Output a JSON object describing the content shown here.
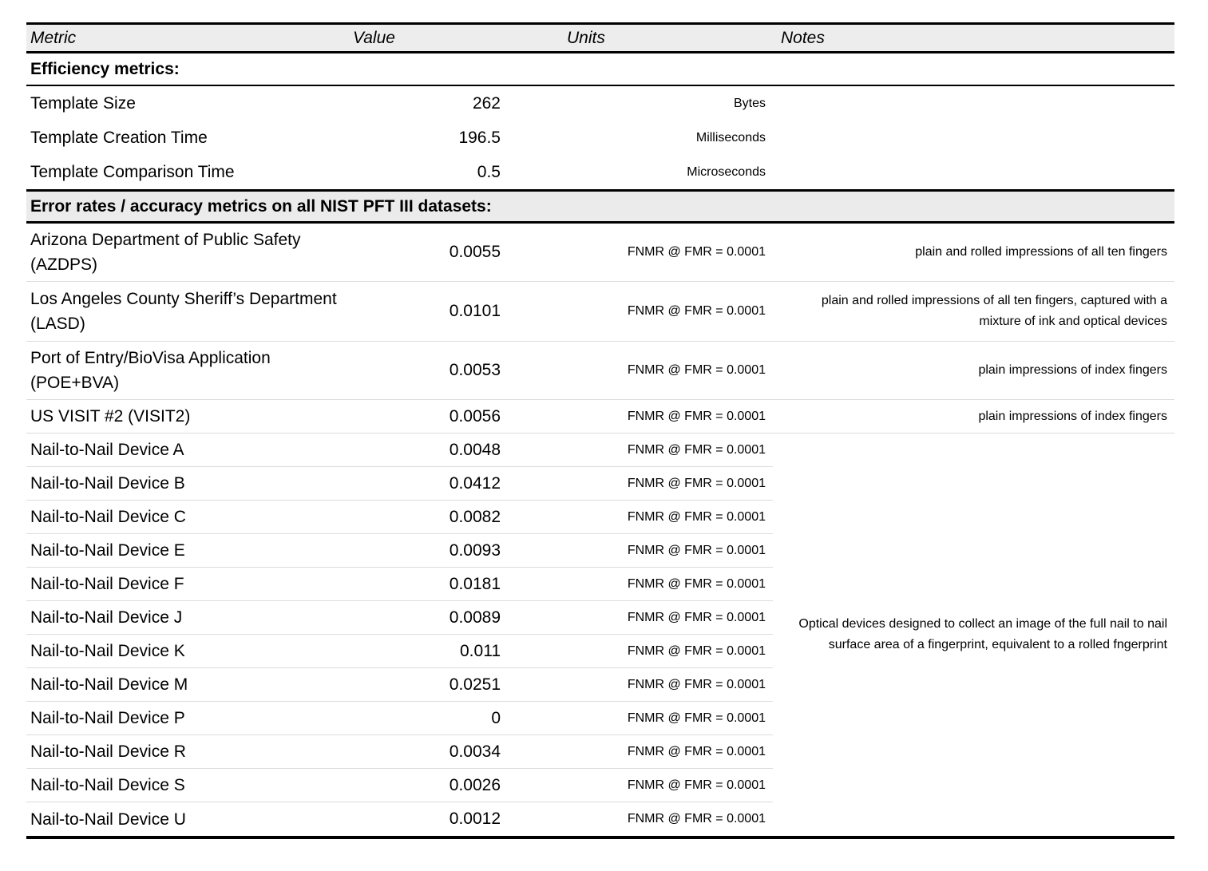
{
  "style": {
    "header_bg": "#ededed",
    "section_header_bg": "#ebebeb",
    "row_divider": "#dcdcdc",
    "border_color": "#000000",
    "text_color": "#000000"
  },
  "table": {
    "header": {
      "metric": "Metric",
      "value": "Value",
      "units": "Units",
      "notes": "Notes"
    },
    "sections": [
      {
        "title": "Efficiency metrics:",
        "rows": [
          {
            "metric": "Template Size",
            "value": "262",
            "units": "Bytes",
            "notes": ""
          },
          {
            "metric": "Template Creation Time",
            "value": "196.5",
            "units": "Milliseconds",
            "notes": ""
          },
          {
            "metric": "Template Comparison Time",
            "value": "0.5",
            "units": "Microseconds",
            "notes": ""
          }
        ]
      },
      {
        "title": "Error rates / accuracy metrics on all NIST PFT III datasets:",
        "rows": [
          {
            "metric": "Arizona Department of Public Safety (AZDPS)",
            "value": "0.0055",
            "units": "FNMR @ FMR = 0.0001",
            "notes": "plain and rolled impressions of all ten fingers"
          },
          {
            "metric": "Los Angeles County Sheriff’s Department (LASD)",
            "value": "0.0101",
            "units": "FNMR @ FMR = 0.0001",
            "notes": "plain and rolled impressions of all ten fingers, captured with a mixture of ink and optical devices"
          },
          {
            "metric": "Port of Entry/BioVisa Application (POE+BVA)",
            "value": "0.0053",
            "units": "FNMR @ FMR = 0.0001",
            "notes": "plain impressions of index fingers"
          },
          {
            "metric": "US VISIT #2 (VISIT2)",
            "value": "0.0056",
            "units": "FNMR @ FMR = 0.0001",
            "notes": "plain impressions of index fingers"
          }
        ],
        "device_group": {
          "shared_note": "Optical devices designed to collect an image of the full nail to nail surface area of a fingerprint, equivalent to a rolled fngerprint",
          "rows": [
            {
              "metric": "Nail-to-Nail Device A",
              "value": "0.0048",
              "units": "FNMR @ FMR = 0.0001"
            },
            {
              "metric": "Nail-to-Nail Device B",
              "value": "0.0412",
              "units": "FNMR @ FMR = 0.0001"
            },
            {
              "metric": "Nail-to-Nail Device C",
              "value": "0.0082",
              "units": "FNMR @ FMR = 0.0001"
            },
            {
              "metric": "Nail-to-Nail Device E",
              "value": "0.0093",
              "units": "FNMR @ FMR = 0.0001"
            },
            {
              "metric": "Nail-to-Nail Device F",
              "value": "0.0181",
              "units": "FNMR @ FMR = 0.0001"
            },
            {
              "metric": "Nail-to-Nail Device J",
              "value": "0.0089",
              "units": "FNMR @ FMR = 0.0001"
            },
            {
              "metric": "Nail-to-Nail Device K",
              "value": "0.011",
              "units": "FNMR @ FMR = 0.0001"
            },
            {
              "metric": "Nail-to-Nail Device M",
              "value": "0.0251",
              "units": "FNMR @ FMR = 0.0001"
            },
            {
              "metric": "Nail-to-Nail Device P",
              "value": "0",
              "units": "FNMR @ FMR = 0.0001"
            },
            {
              "metric": "Nail-to-Nail Device R",
              "value": "0.0034",
              "units": "FNMR @ FMR = 0.0001"
            },
            {
              "metric": "Nail-to-Nail Device S",
              "value": "0.0026",
              "units": "FNMR @ FMR = 0.0001"
            },
            {
              "metric": "Nail-to-Nail Device U",
              "value": "0.0012",
              "units": "FNMR @ FMR = 0.0001"
            }
          ]
        }
      }
    ]
  }
}
